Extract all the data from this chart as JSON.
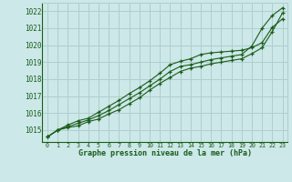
{
  "title": "Graphe pression niveau de la mer (hPa)",
  "bg_color": "#cce8e8",
  "grid_color": "#b0cece",
  "line_color": "#1a5c1a",
  "xlim": [
    -0.5,
    23.5
  ],
  "ylim": [
    1014.3,
    1022.5
  ],
  "xticks": [
    0,
    1,
    2,
    3,
    4,
    5,
    6,
    7,
    8,
    9,
    10,
    11,
    12,
    13,
    14,
    15,
    16,
    17,
    18,
    19,
    20,
    21,
    22,
    23
  ],
  "yticks": [
    1015,
    1016,
    1017,
    1018,
    1019,
    1020,
    1021,
    1022
  ],
  "series1": [
    1014.6,
    1015.0,
    1015.15,
    1015.25,
    1015.5,
    1015.65,
    1015.95,
    1016.2,
    1016.55,
    1016.9,
    1017.35,
    1017.75,
    1018.1,
    1018.45,
    1018.65,
    1018.75,
    1018.9,
    1019.0,
    1019.1,
    1019.2,
    1019.5,
    1019.85,
    1020.8,
    1021.9
  ],
  "series2": [
    1014.6,
    1015.0,
    1015.2,
    1015.4,
    1015.6,
    1015.85,
    1016.15,
    1016.5,
    1016.85,
    1017.2,
    1017.6,
    1018.0,
    1018.45,
    1018.75,
    1018.85,
    1019.0,
    1019.15,
    1019.25,
    1019.35,
    1019.45,
    1019.95,
    1021.0,
    1021.75,
    1022.2
  ],
  "series3": [
    1014.6,
    1015.0,
    1015.3,
    1015.55,
    1015.7,
    1016.05,
    1016.4,
    1016.75,
    1017.15,
    1017.5,
    1017.9,
    1018.35,
    1018.85,
    1019.05,
    1019.2,
    1019.45,
    1019.55,
    1019.6,
    1019.65,
    1019.7,
    1019.85,
    1020.15,
    1021.05,
    1021.55
  ]
}
